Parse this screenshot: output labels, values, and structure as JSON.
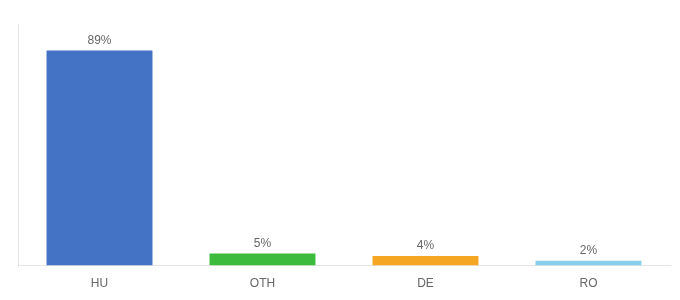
{
  "chart_data": {
    "type": "bar",
    "categories": [
      "HU",
      "OTH",
      "DE",
      "RO"
    ],
    "values": [
      89,
      5,
      4,
      2
    ],
    "value_labels": [
      "89%",
      "5%",
      "4%",
      "2%"
    ],
    "colors": [
      "#4472c4",
      "#3dbb3d",
      "#f5a623",
      "#87ceeb"
    ],
    "ylim": [
      0,
      100
    ],
    "data_labels": true,
    "tick_labels": "x",
    "grid": false
  }
}
